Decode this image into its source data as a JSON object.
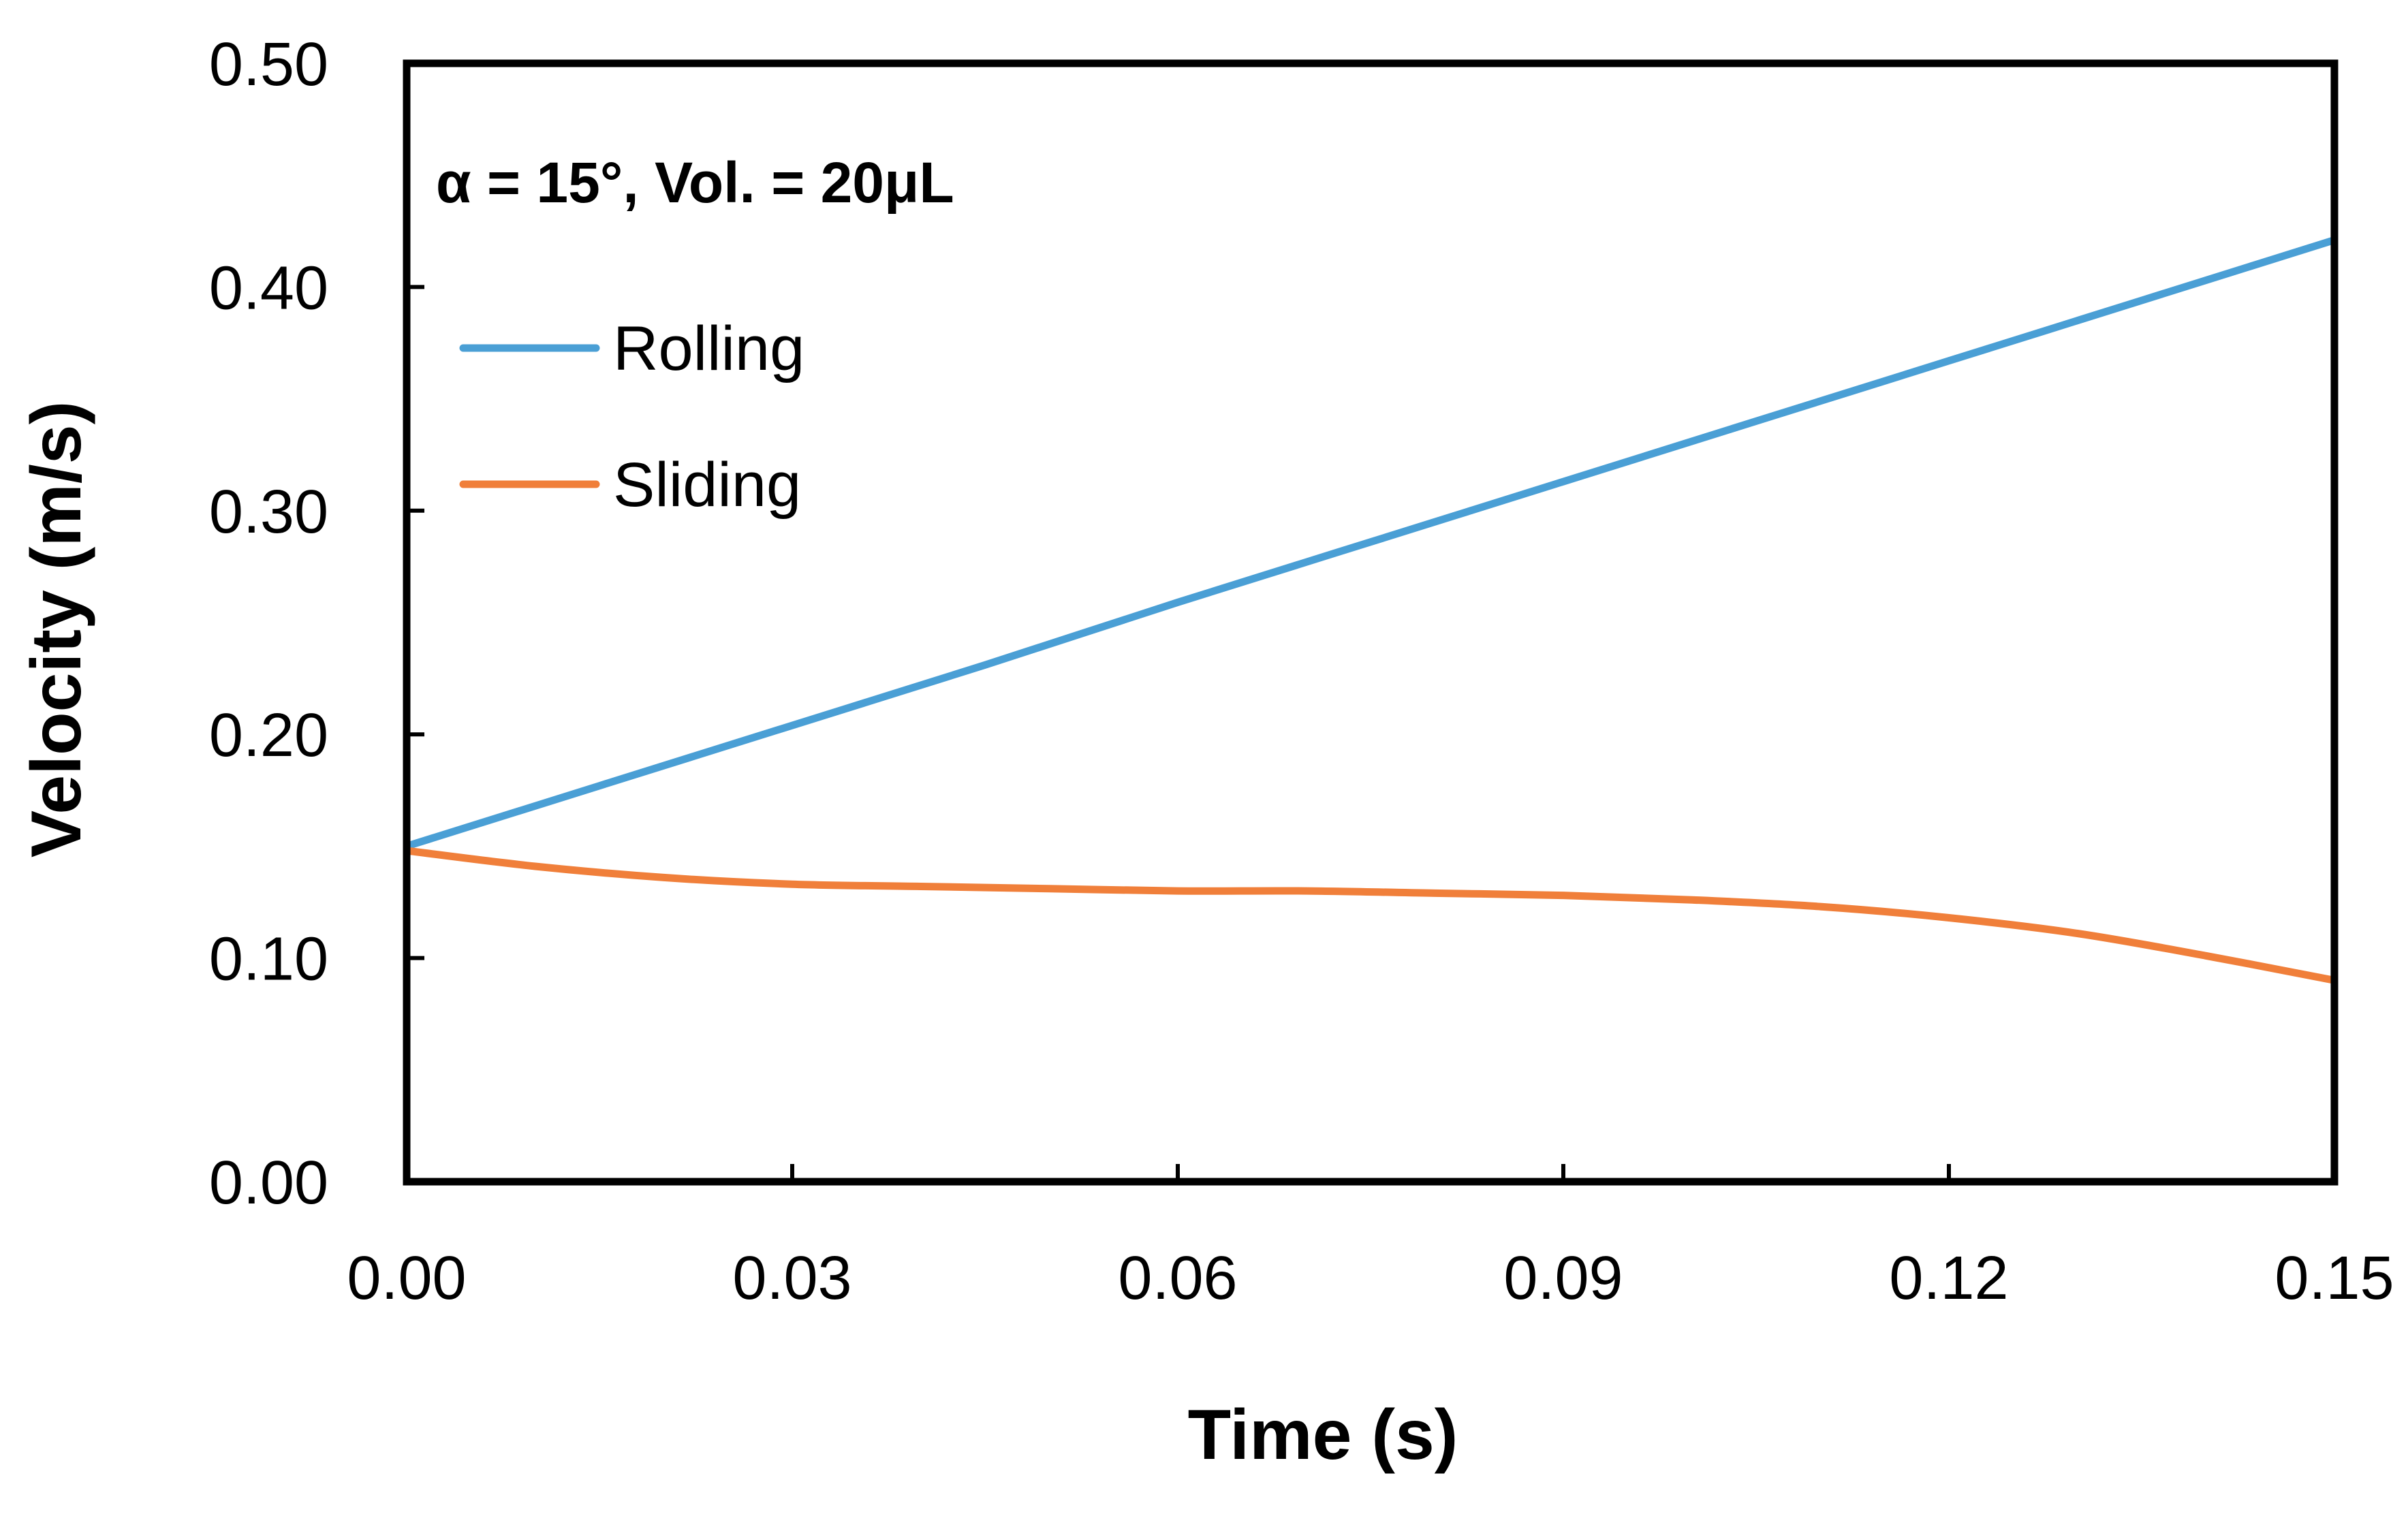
{
  "chart_data": {
    "type": "line",
    "title": "",
    "annotation": "α  = 15°, Vol. = 20μL",
    "xlabel": "Time (s)",
    "ylabel": "Velocity (m/s)",
    "xlim": [
      0,
      0.15
    ],
    "ylim": [
      0,
      0.5
    ],
    "xticks": [
      0,
      0.03,
      0.06,
      0.09,
      0.12,
      0.15
    ],
    "xtick_labels": [
      "0.00",
      "0.03",
      "0.06",
      "0.09",
      "0.12",
      "0.15"
    ],
    "yticks": [
      0,
      0.1,
      0.2,
      0.3,
      0.4,
      0.5
    ],
    "ytick_labels": [
      "0.00",
      "0.10",
      "0.20",
      "0.30",
      "0.40",
      "0.50"
    ],
    "grid": false,
    "legend_position": "top-left",
    "series": [
      {
        "name": "Rolling",
        "color": "#4a9fd5",
        "x": [
          0,
          0.015,
          0.03,
          0.045,
          0.06,
          0.075,
          0.09,
          0.105,
          0.12,
          0.135,
          0.15
        ],
        "y": [
          0.15,
          0.177,
          0.204,
          0.231,
          0.259,
          0.286,
          0.313,
          0.34,
          0.367,
          0.394,
          0.421
        ]
      },
      {
        "name": "Sliding",
        "color": "#f07f3a",
        "x": [
          0,
          0.01,
          0.02,
          0.03,
          0.04,
          0.05,
          0.06,
          0.07,
          0.08,
          0.09,
          0.1,
          0.11,
          0.12,
          0.13,
          0.14,
          0.15
        ],
        "y": [
          0.148,
          0.141,
          0.136,
          0.133,
          0.132,
          0.131,
          0.13,
          0.13,
          0.129,
          0.128,
          0.126,
          0.123,
          0.118,
          0.111,
          0.101,
          0.09
        ]
      }
    ]
  }
}
